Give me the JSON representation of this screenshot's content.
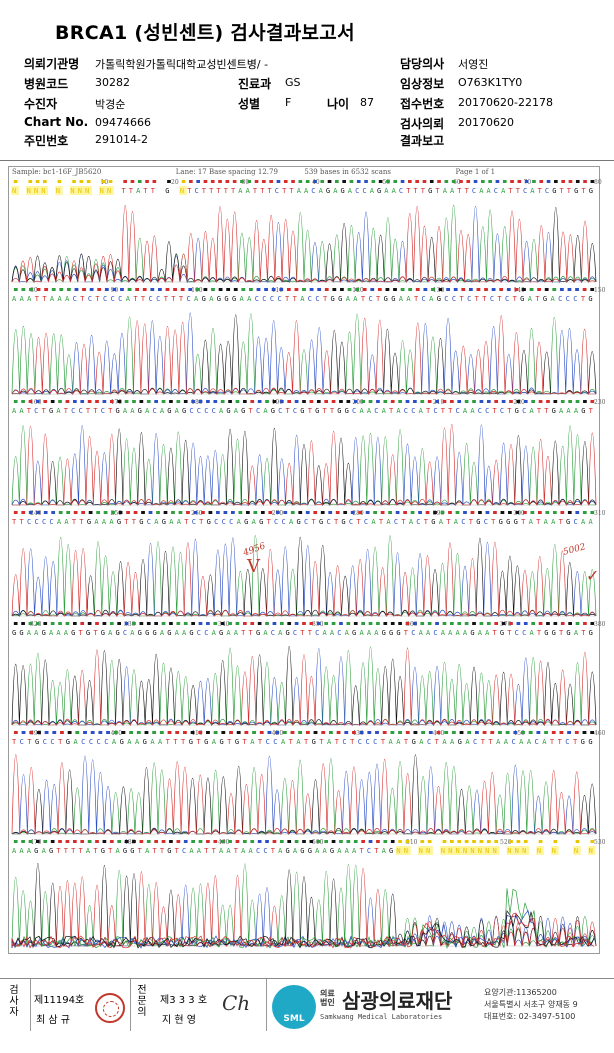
{
  "report": {
    "title": "BRCA1 (성빈센트) 검사결과보고서",
    "rows": [
      {
        "label": "의뢰기관명",
        "value": "가톨릭학원가톨릭대학교성빈센트병/ -"
      },
      {
        "label": "병원코드",
        "value": "30282"
      },
      {
        "label": "수진자",
        "value": "박경순"
      },
      {
        "label": "Chart No.",
        "value": "09474666"
      },
      {
        "label": "주민번호",
        "value": "291014-2"
      }
    ],
    "mid": [
      {
        "label": "진료과",
        "value": "GS"
      },
      {
        "label": "성별",
        "value": "F"
      },
      {
        "label": "나이",
        "value": "87"
      }
    ],
    "right": [
      {
        "label": "담당의사",
        "value": "서영진"
      },
      {
        "label": "임상정보",
        "value": "O763K1TY0"
      },
      {
        "label": "접수번호",
        "value": "20170620-22178"
      },
      {
        "label": "검사의뢰",
        "value": "20170620"
      },
      {
        "label": "결과보고",
        "value": ""
      }
    ]
  },
  "electropherogram": {
    "header": {
      "sample": "Sample: bc1-16F_JB5620",
      "lane": "Lane: 17  Base spacing 12.79",
      "bases": "539 bases in 6532 scans",
      "page": "Page 1 of 1"
    },
    "rows": [
      {
        "ticks": [
          "",
          "10",
          "20",
          "30",
          "40",
          "50",
          "60",
          "70",
          "80"
        ],
        "seq": "N NNN N NNN NN TTATT G NTCTTTTTAATTTCTTAACAGAGACCAGAACTTTGTAATTCAACATTCATCGTTGTG"
      },
      {
        "ticks": [
          "80",
          "90",
          "100",
          "110",
          "120",
          "130",
          "140",
          "150"
        ],
        "seq": "AAATTAAACTCTCCCATTCCTTTCAGAGGGAACCCCTTACCTGGAATCTGGAATCAGCCTCTTCTCTGATGACCCTG"
      },
      {
        "ticks": [
          "160",
          "170",
          "180",
          "190",
          "200",
          "210",
          "220",
          "230"
        ],
        "seq": "AATCTGATCCTTCTGAAGACAGAGCCCCAGAGTCAGCTCGTGTTGGCAACATACCATCTTCAACCTCTGCATTGAAAGT"
      },
      {
        "ticks": [
          "240",
          "250",
          "260",
          "270",
          "280",
          "290",
          "300",
          "310"
        ],
        "seq": "TTCCCCAATTGAAAGTTGCAGAATCTGCCCAGAGTCCAGCTGCTGCTCATACTACTGATACTGCTGGGTATAATGCAA"
      },
      {
        "ticks": [
          "320",
          "330",
          "340",
          "350",
          "360",
          "370",
          "380"
        ],
        "seq": "GGAAGAAAGTGTGAGCAGGGAGAAGCCAGAATTGACAGCTTCAACAGAAAGGGTCAACAAAAGAATGTCCATGGTGATG"
      },
      {
        "ticks": [
          "390",
          "400",
          "410",
          "420",
          "430",
          "440",
          "450",
          "460"
        ],
        "seq": "TCTGCCTGACCCCAGAAGAATTTGTGAGTGTATCCATATGTATCTCCCTAATGACTAAGACTTAACAACATTCTGG"
      },
      {
        "ticks": [
          "470",
          "480",
          "490",
          "500",
          "510",
          "520",
          "530"
        ],
        "seq": "AAAGAGTTTTATGTAGGTATTGTCAATTAATAACCTAGAGGAAGAAATCTAGNN NN NNNNNNNN NNN N N  N N"
      },
      {
        "ticks": [],
        "seq": ""
      }
    ],
    "annotations": {
      "variant_pos": "4956",
      "variant_mark": "V",
      "right_pos": "5002",
      "right_mark": "✓"
    },
    "colors": {
      "A": "#2e9e3e",
      "C": "#2d4fc6",
      "G": "#111111",
      "T": "#d62c2c",
      "N": "#e7c500"
    }
  },
  "footer": {
    "labels": {
      "exam": "검사자",
      "specialist": "전문의"
    },
    "exam": {
      "license": "제11194호",
      "name": "최 삼 규"
    },
    "specialist": {
      "license": "제3 3 3 호",
      "name": "지 현 영",
      "signature": "Ch"
    },
    "logo_text": "SML",
    "org_small": "의료법인",
    "org_name": "삼광의료재단",
    "org_en": "Samkwang Medical Laboratories",
    "org_info": [
      "요양기관:11365200",
      "서울특별시 서초구 양재동 9",
      "대표번호: 02-3497-5100"
    ]
  }
}
